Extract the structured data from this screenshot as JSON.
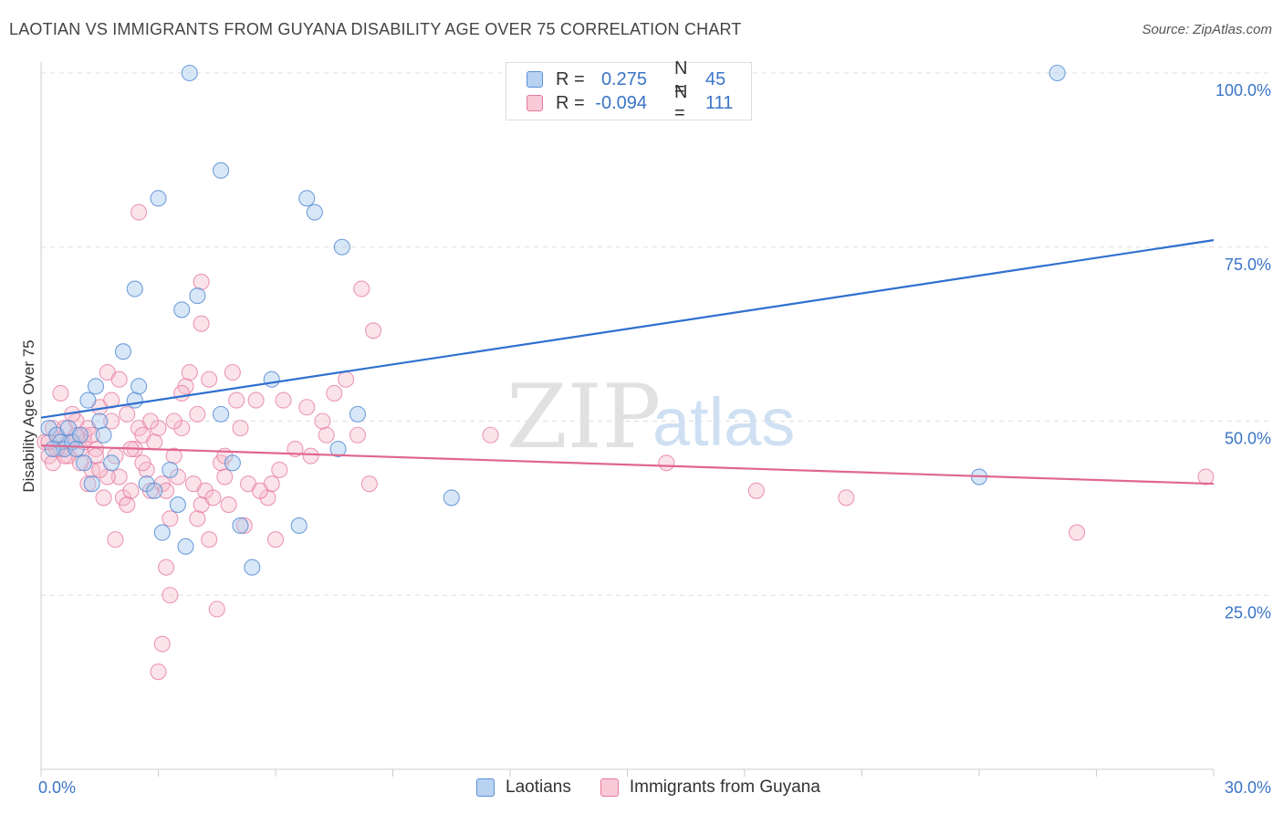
{
  "title": "LAOTIAN VS IMMIGRANTS FROM GUYANA DISABILITY AGE OVER 75 CORRELATION CHART",
  "source": "Source: ZipAtlas.com",
  "watermark": {
    "zip": "ZIP",
    "atlas": "atlas"
  },
  "legend_top": {
    "r_label": "R =",
    "n_label": "N =",
    "rows": [
      {
        "r": "0.275",
        "n": "45"
      },
      {
        "r": "-0.094",
        "n": "111"
      }
    ]
  },
  "colors": {
    "laotian_fill": "#a9c9ee",
    "laotian_stroke": "#5b8fd6",
    "laotian_line": "#2f6fcf",
    "guyana_fill": "#f6b8cb",
    "guyana_stroke": "#e57a9d",
    "guyana_line": "#e0668f",
    "tick_label": "#3a74c6",
    "grid": "#dddddd"
  },
  "chart_data": {
    "type": "scatter",
    "title": "LAOTIAN VS IMMIGRANTS FROM GUYANA DISABILITY AGE OVER 75 CORRELATION CHART",
    "xlabel": "",
    "ylabel": "Disability Age Over 75",
    "xlim": [
      0,
      30
    ],
    "ylim": [
      0,
      100
    ],
    "x_tick_labels": [
      "0.0%",
      "30.0%"
    ],
    "y_tick_labels": [
      "25.0%",
      "50.0%",
      "75.0%",
      "100.0%"
    ],
    "y_ticks": [
      25,
      50,
      75,
      100
    ],
    "grid": true,
    "legend_position": "top-center",
    "series": [
      {
        "name": "Laotians",
        "r": 0.275,
        "n": 45,
        "trend": {
          "x": [
            0,
            30
          ],
          "y": [
            50.5,
            76.0
          ]
        },
        "points": [
          [
            0.2,
            49
          ],
          [
            0.4,
            48
          ],
          [
            0.5,
            47
          ],
          [
            0.6,
            46
          ],
          [
            0.7,
            49
          ],
          [
            0.8,
            47
          ],
          [
            1.0,
            48
          ],
          [
            1.1,
            44
          ],
          [
            1.3,
            41
          ],
          [
            1.4,
            55
          ],
          [
            1.5,
            50
          ],
          [
            1.6,
            48
          ],
          [
            1.8,
            44
          ],
          [
            2.1,
            60
          ],
          [
            2.4,
            53
          ],
          [
            2.5,
            55
          ],
          [
            2.7,
            41
          ],
          [
            2.9,
            40
          ],
          [
            3.1,
            34
          ],
          [
            3.3,
            43
          ],
          [
            3.5,
            38
          ],
          [
            3.7,
            32
          ],
          [
            4.0,
            68
          ],
          [
            4.6,
            51
          ],
          [
            4.9,
            44
          ],
          [
            5.1,
            35
          ],
          [
            5.4,
            29
          ],
          [
            5.9,
            56
          ],
          [
            6.6,
            35
          ],
          [
            7.6,
            46
          ],
          [
            8.1,
            51
          ],
          [
            10.5,
            39
          ],
          [
            24.0,
            42
          ],
          [
            3.0,
            82
          ],
          [
            3.8,
            100
          ],
          [
            4.6,
            86
          ],
          [
            6.8,
            82
          ],
          [
            7.0,
            80
          ],
          [
            7.7,
            75
          ],
          [
            2.4,
            69
          ],
          [
            3.6,
            66
          ],
          [
            0.9,
            46
          ],
          [
            1.2,
            53
          ],
          [
            0.3,
            46
          ],
          [
            26.0,
            100
          ]
        ]
      },
      {
        "name": "Immigrants from Guyana",
        "r": -0.094,
        "n": 111,
        "trend": {
          "x": [
            0,
            30
          ],
          "y": [
            46.5,
            41.0
          ]
        },
        "points": [
          [
            0.1,
            47
          ],
          [
            0.2,
            45
          ],
          [
            0.3,
            44
          ],
          [
            0.4,
            48
          ],
          [
            0.5,
            46
          ],
          [
            0.6,
            49
          ],
          [
            0.7,
            45
          ],
          [
            0.8,
            47
          ],
          [
            0.9,
            50
          ],
          [
            1.0,
            46
          ],
          [
            1.1,
            48
          ],
          [
            1.2,
            41
          ],
          [
            1.3,
            43
          ],
          [
            1.4,
            46
          ],
          [
            1.5,
            52
          ],
          [
            1.6,
            39
          ],
          [
            1.7,
            57
          ],
          [
            1.8,
            50
          ],
          [
            1.9,
            45
          ],
          [
            2.0,
            42
          ],
          [
            2.1,
            39
          ],
          [
            2.2,
            38
          ],
          [
            2.3,
            40
          ],
          [
            2.4,
            46
          ],
          [
            2.5,
            49
          ],
          [
            2.6,
            48
          ],
          [
            2.7,
            43
          ],
          [
            2.8,
            40
          ],
          [
            2.9,
            47
          ],
          [
            3.0,
            49
          ],
          [
            3.1,
            41
          ],
          [
            3.2,
            40
          ],
          [
            3.3,
            36
          ],
          [
            3.4,
            45
          ],
          [
            3.5,
            42
          ],
          [
            3.6,
            49
          ],
          [
            3.7,
            55
          ],
          [
            3.8,
            57
          ],
          [
            3.9,
            41
          ],
          [
            4.0,
            36
          ],
          [
            4.1,
            38
          ],
          [
            4.2,
            40
          ],
          [
            4.3,
            33
          ],
          [
            4.4,
            39
          ],
          [
            4.5,
            23
          ],
          [
            4.6,
            44
          ],
          [
            4.7,
            45
          ],
          [
            4.8,
            38
          ],
          [
            4.9,
            57
          ],
          [
            5.0,
            53
          ],
          [
            5.1,
            49
          ],
          [
            5.2,
            35
          ],
          [
            5.3,
            41
          ],
          [
            5.5,
            53
          ],
          [
            5.8,
            39
          ],
          [
            5.9,
            41
          ],
          [
            6.0,
            33
          ],
          [
            6.2,
            53
          ],
          [
            6.5,
            46
          ],
          [
            6.8,
            52
          ],
          [
            7.3,
            48
          ],
          [
            7.5,
            54
          ],
          [
            7.8,
            56
          ],
          [
            8.1,
            48
          ],
          [
            8.4,
            41
          ],
          [
            8.2,
            69
          ],
          [
            8.5,
            63
          ],
          [
            2.5,
            80
          ],
          [
            4.1,
            70
          ],
          [
            4.1,
            64
          ],
          [
            3.3,
            25
          ],
          [
            3.1,
            18
          ],
          [
            3.0,
            14
          ],
          [
            3.2,
            29
          ],
          [
            1.9,
            33
          ],
          [
            0.5,
            54
          ],
          [
            0.8,
            51
          ],
          [
            1.1,
            47
          ],
          [
            1.2,
            49
          ],
          [
            1.4,
            45
          ],
          [
            0.6,
            45
          ],
          [
            0.3,
            49
          ],
          [
            0.9,
            48
          ],
          [
            1.7,
            42
          ],
          [
            2.2,
            51
          ],
          [
            2.6,
            44
          ],
          [
            3.4,
            50
          ],
          [
            4.0,
            51
          ],
          [
            4.7,
            42
          ],
          [
            2.0,
            56
          ],
          [
            6.9,
            45
          ],
          [
            11.5,
            48
          ],
          [
            16.0,
            44
          ],
          [
            18.3,
            40
          ],
          [
            20.6,
            39
          ],
          [
            26.5,
            34
          ],
          [
            29.8,
            42
          ],
          [
            0.4,
            46
          ],
          [
            0.7,
            47
          ],
          [
            1.0,
            44
          ],
          [
            1.3,
            48
          ],
          [
            1.5,
            43
          ],
          [
            2.3,
            46
          ],
          [
            2.8,
            50
          ],
          [
            3.6,
            54
          ],
          [
            4.3,
            56
          ],
          [
            5.6,
            40
          ],
          [
            6.1,
            43
          ],
          [
            7.2,
            50
          ],
          [
            1.8,
            53
          ],
          [
            0.2,
            47
          ]
        ]
      }
    ]
  },
  "legend_bottom": [
    {
      "label": "Laotians"
    },
    {
      "label": "Immigrants from Guyana"
    }
  ]
}
